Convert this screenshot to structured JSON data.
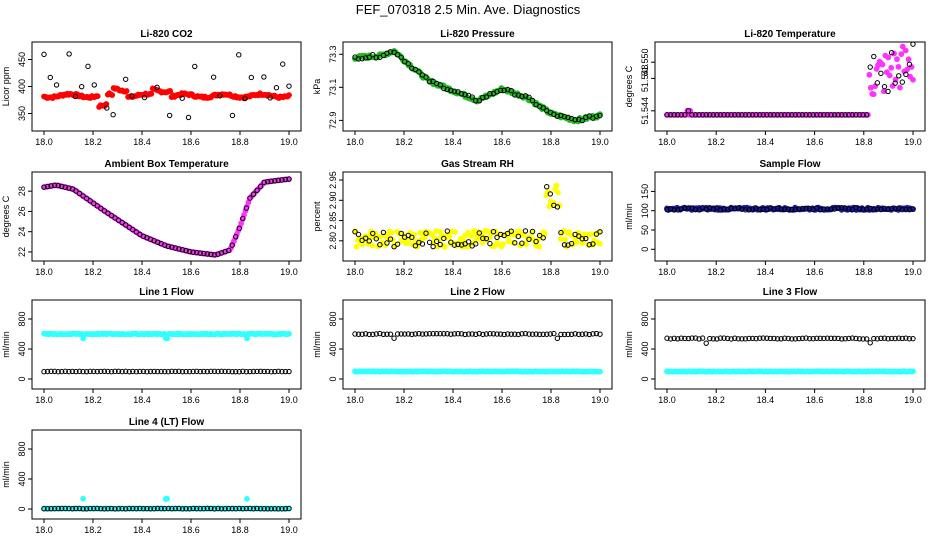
{
  "page": {
    "title": "FEF_070318  2.5 Min. Ave. Diagnostics"
  },
  "colors": {
    "red": "#ff0000",
    "green": "#22bb22",
    "magenta": "#ff33ff",
    "yellow": "#ffff00",
    "blue": "#1a1aa8",
    "cyan": "#33ffff",
    "black": "#000000"
  },
  "chart_data": [
    {
      "type": "scatter",
      "title": "Li-820 CO2",
      "ylabel": "Licor ppm",
      "xlim": [
        18.0,
        19.0
      ],
      "ylim": [
        325,
        475
      ],
      "xticks": [
        "18.0",
        "18.2",
        "18.4",
        "18.6",
        "18.8",
        "19.0"
      ],
      "yticks": [
        "350",
        "400",
        "450"
      ],
      "series": [
        {
          "name": "primary",
          "color": "red",
          "pattern": "co2"
        },
        {
          "name": "secondary",
          "color": "black",
          "pattern": "co2_scatter"
        }
      ]
    },
    {
      "type": "scatter",
      "title": "Li-820 Pressure",
      "ylabel": "kPa",
      "xlim": [
        18.0,
        19.0
      ],
      "ylim": [
        72.86,
        73.35
      ],
      "xticks": [
        "18.0",
        "18.2",
        "18.4",
        "18.6",
        "18.8",
        "19.0"
      ],
      "yticks": [
        "72.9",
        "73.1",
        "73.3"
      ],
      "series": [
        {
          "name": "primary",
          "color": "green",
          "pattern": "pressure"
        },
        {
          "name": "secondary",
          "color": "black",
          "pattern": "pressure"
        }
      ]
    },
    {
      "type": "scatter",
      "title": "Li-820 Temperature",
      "ylabel": "degrees C",
      "xlim": [
        18.0,
        19.0
      ],
      "ylim": [
        51.542,
        51.552
      ],
      "xticks": [
        "18.0",
        "18.2",
        "18.4",
        "18.6",
        "18.8",
        "19.0"
      ],
      "yticks": [
        "51.544",
        "51.548",
        "51.550"
      ],
      "series": [
        {
          "name": "primary",
          "color": "magenta",
          "pattern": "licortemp"
        },
        {
          "name": "secondary",
          "color": "black",
          "pattern": "licortemp"
        }
      ]
    },
    {
      "type": "scatter",
      "title": "Ambient Box Temperature",
      "ylabel": "degrees C",
      "xlim": [
        18.0,
        19.0
      ],
      "ylim": [
        21.5,
        29.5
      ],
      "xticks": [
        "18.0",
        "18.2",
        "18.4",
        "18.6",
        "18.8",
        "19.0"
      ],
      "yticks": [
        "22",
        "24",
        "26",
        "28"
      ],
      "series": [
        {
          "name": "primary",
          "color": "magenta",
          "pattern": "ambient"
        },
        {
          "name": "secondary",
          "color": "black",
          "pattern": "ambient"
        }
      ]
    },
    {
      "type": "scatter",
      "title": "Gas Stream RH",
      "ylabel": "percent",
      "xlim": [
        18.0,
        19.0
      ],
      "ylim": [
        2.76,
        2.96
      ],
      "xticks": [
        "18.0",
        "18.2",
        "18.4",
        "18.6",
        "18.8",
        "19.0"
      ],
      "yticks": [
        "2.80",
        "2.85",
        "2.90",
        "2.95"
      ],
      "ytick_values": [
        2.8,
        2.85,
        2.9,
        2.95
      ],
      "extra_ytick": "2.85",
      "series": [
        {
          "name": "primary",
          "color": "yellow",
          "pattern": "rh"
        },
        {
          "name": "secondary",
          "color": "black",
          "pattern": "rh"
        }
      ]
    },
    {
      "type": "scatter",
      "title": "Sample Flow",
      "ylabel": "ml/min",
      "xlim": [
        18.0,
        19.0
      ],
      "ylim": [
        -20,
        190
      ],
      "xticks": [
        "18.0",
        "18.2",
        "18.4",
        "18.6",
        "18.8",
        "19.0"
      ],
      "yticks": [
        "0",
        "50",
        "100",
        "150"
      ],
      "series": [
        {
          "name": "primary",
          "color": "blue",
          "pattern": "flat",
          "level": 105
        },
        {
          "name": "secondary",
          "color": "black",
          "pattern": "flat",
          "level": 105
        }
      ]
    },
    {
      "type": "scatter",
      "title": "Line 1 Flow",
      "ylabel": "ml/min",
      "xlim": [
        18.0,
        19.0
      ],
      "ylim": [
        -80,
        1000
      ],
      "xticks": [
        "18.0",
        "18.2",
        "18.4",
        "18.6",
        "18.8",
        "19.0"
      ],
      "yticks": [
        "0",
        "400",
        "800"
      ],
      "series": [
        {
          "name": "primary",
          "color": "cyan",
          "pattern": "flat",
          "level": 600,
          "dips": true
        },
        {
          "name": "secondary",
          "color": "black",
          "pattern": "flat",
          "level": 100
        }
      ]
    },
    {
      "type": "scatter",
      "title": "Line 2 Flow",
      "ylabel": "ml/min",
      "xlim": [
        18.0,
        19.0
      ],
      "ylim": [
        -80,
        1000
      ],
      "xticks": [
        "18.0",
        "18.2",
        "18.4",
        "18.6",
        "18.8",
        "19.0"
      ],
      "yticks": [
        "0",
        "400",
        "800"
      ],
      "series": [
        {
          "name": "primary",
          "color": "cyan",
          "pattern": "flat",
          "level": 100
        },
        {
          "name": "secondary",
          "color": "black",
          "pattern": "flat",
          "level": 600,
          "dips": true
        }
      ]
    },
    {
      "type": "scatter",
      "title": "Line 3 Flow",
      "ylabel": "ml/min",
      "xlim": [
        18.0,
        19.0
      ],
      "ylim": [
        -80,
        1000
      ],
      "xticks": [
        "18.0",
        "18.2",
        "18.4",
        "18.6",
        "18.8",
        "19.0"
      ],
      "yticks": [
        "0",
        "400",
        "800"
      ],
      "series": [
        {
          "name": "primary",
          "color": "cyan",
          "pattern": "flat",
          "level": 100
        },
        {
          "name": "secondary",
          "color": "black",
          "pattern": "flat",
          "level": 540,
          "dips": true
        }
      ]
    },
    {
      "type": "scatter",
      "title": "Line 4 (LT) Flow",
      "ylabel": "ml/min",
      "xlim": [
        18.0,
        19.0
      ],
      "ylim": [
        -80,
        1000
      ],
      "xticks": [
        "18.0",
        "18.2",
        "18.4",
        "18.6",
        "18.8",
        "19.0"
      ],
      "yticks": [
        "0",
        "400",
        "800"
      ],
      "series": [
        {
          "name": "primary",
          "color": "cyan",
          "pattern": "flat",
          "level": 5,
          "spikes": true
        },
        {
          "name": "secondary",
          "color": "black",
          "pattern": "flat",
          "level": 5
        }
      ]
    }
  ]
}
